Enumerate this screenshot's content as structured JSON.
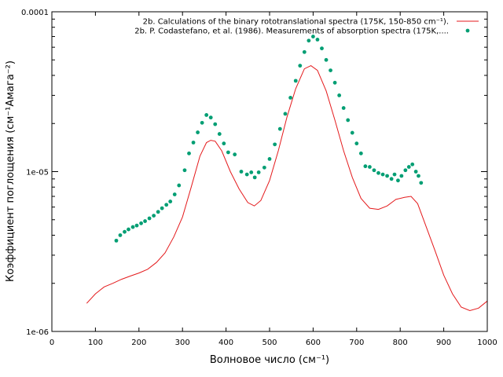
{
  "chart_data": {
    "type": "line",
    "xlabel": "Волновое число (см⁻¹)",
    "ylabel": "Коэффициент поглощения (см⁻¹Амага⁻²)",
    "x_ticks": [
      0,
      100,
      200,
      300,
      400,
      500,
      600,
      700,
      800,
      900,
      1000
    ],
    "y_ticks": [
      {
        "value": 1e-06,
        "label": "1e-06"
      },
      {
        "value": 1e-05,
        "label": "1e-05"
      },
      {
        "value": 0.0001,
        "label": "0.0001"
      }
    ],
    "xlim": [
      0,
      1000
    ],
    "ylim": [
      1e-06,
      0.0001
    ],
    "y_scale": "log",
    "grid": false,
    "legend_position": "top-right",
    "series": [
      {
        "name": "2b. Calculations of the binary rototranslational spectra  (175K, 150-850 cm⁻¹).",
        "style": "line",
        "color": "#e41a1c",
        "points": [
          [
            80,
            1.5e-06
          ],
          [
            100,
            1.72e-06
          ],
          [
            120,
            1.9e-06
          ],
          [
            140,
            2e-06
          ],
          [
            160,
            2.12e-06
          ],
          [
            180,
            2.22e-06
          ],
          [
            200,
            2.32e-06
          ],
          [
            220,
            2.45e-06
          ],
          [
            240,
            2.7e-06
          ],
          [
            260,
            3.1e-06
          ],
          [
            280,
            3.9e-06
          ],
          [
            300,
            5.2e-06
          ],
          [
            320,
            8e-06
          ],
          [
            340,
            1.25e-05
          ],
          [
            355,
            1.52e-05
          ],
          [
            365,
            1.57e-05
          ],
          [
            375,
            1.55e-05
          ],
          [
            390,
            1.35e-05
          ],
          [
            410,
            1e-05
          ],
          [
            430,
            7.8e-06
          ],
          [
            450,
            6.4e-06
          ],
          [
            465,
            6.1e-06
          ],
          [
            480,
            6.6e-06
          ],
          [
            500,
            8.8e-06
          ],
          [
            520,
            1.35e-05
          ],
          [
            540,
            2.2e-05
          ],
          [
            560,
            3.3e-05
          ],
          [
            580,
            4.4e-05
          ],
          [
            595,
            4.6e-05
          ],
          [
            610,
            4.3e-05
          ],
          [
            630,
            3.2e-05
          ],
          [
            650,
            2.1e-05
          ],
          [
            670,
            1.35e-05
          ],
          [
            690,
            9.2e-06
          ],
          [
            710,
            6.8e-06
          ],
          [
            730,
            5.9e-06
          ],
          [
            750,
            5.8e-06
          ],
          [
            770,
            6.1e-06
          ],
          [
            790,
            6.7e-06
          ],
          [
            810,
            6.9e-06
          ],
          [
            825,
            7e-06
          ],
          [
            840,
            6.3e-06
          ],
          [
            860,
            4.5e-06
          ],
          [
            880,
            3.2e-06
          ],
          [
            900,
            2.25e-06
          ],
          [
            920,
            1.72e-06
          ],
          [
            940,
            1.42e-06
          ],
          [
            960,
            1.35e-06
          ],
          [
            980,
            1.4e-06
          ],
          [
            1000,
            1.55e-06
          ]
        ]
      },
      {
        "name": "2b. P. Codastefano, et al. (1986). Measurements of absorption spectra (175K,....",
        "style": "points",
        "color": "#009e73",
        "points": [
          [
            148,
            3.7e-06
          ],
          [
            157,
            4e-06
          ],
          [
            167,
            4.2e-06
          ],
          [
            176,
            4.35e-06
          ],
          [
            186,
            4.5e-06
          ],
          [
            195,
            4.6e-06
          ],
          [
            205,
            4.75e-06
          ],
          [
            214,
            4.9e-06
          ],
          [
            224,
            5.1e-06
          ],
          [
            234,
            5.3e-06
          ],
          [
            244,
            5.6e-06
          ],
          [
            253,
            5.9e-06
          ],
          [
            263,
            6.2e-06
          ],
          [
            272,
            6.5e-06
          ],
          [
            282,
            7.2e-06
          ],
          [
            292,
            8.2e-06
          ],
          [
            305,
            1.02e-05
          ],
          [
            315,
            1.3e-05
          ],
          [
            325,
            1.52e-05
          ],
          [
            335,
            1.76e-05
          ],
          [
            345,
            2.02e-05
          ],
          [
            355,
            2.26e-05
          ],
          [
            365,
            2.18e-05
          ],
          [
            375,
            1.98e-05
          ],
          [
            385,
            1.72e-05
          ],
          [
            395,
            1.5e-05
          ],
          [
            405,
            1.32e-05
          ],
          [
            420,
            1.28e-05
          ],
          [
            435,
            1e-05
          ],
          [
            448,
            9.6e-06
          ],
          [
            458,
            9.9e-06
          ],
          [
            466,
            9.2e-06
          ],
          [
            475,
            9.9e-06
          ],
          [
            488,
            1.06e-05
          ],
          [
            500,
            1.2e-05
          ],
          [
            512,
            1.48e-05
          ],
          [
            524,
            1.85e-05
          ],
          [
            536,
            2.3e-05
          ],
          [
            548,
            2.9e-05
          ],
          [
            560,
            3.7e-05
          ],
          [
            570,
            4.6e-05
          ],
          [
            580,
            5.6e-05
          ],
          [
            590,
            6.6e-05
          ],
          [
            600,
            7e-05
          ],
          [
            610,
            6.7e-05
          ],
          [
            620,
            5.9e-05
          ],
          [
            630,
            5e-05
          ],
          [
            640,
            4.3e-05
          ],
          [
            650,
            3.6e-05
          ],
          [
            660,
            3e-05
          ],
          [
            670,
            2.5e-05
          ],
          [
            680,
            2.1e-05
          ],
          [
            690,
            1.75e-05
          ],
          [
            700,
            1.5e-05
          ],
          [
            710,
            1.3e-05
          ],
          [
            720,
            1.08e-05
          ],
          [
            730,
            1.07e-05
          ],
          [
            740,
            1.02e-05
          ],
          [
            750,
            9.8e-06
          ],
          [
            760,
            9.6e-06
          ],
          [
            770,
            9.4e-06
          ],
          [
            780,
            9e-06
          ],
          [
            787,
            9.6e-06
          ],
          [
            795,
            8.8e-06
          ],
          [
            803,
            9.4e-06
          ],
          [
            812,
            1.02e-05
          ],
          [
            820,
            1.07e-05
          ],
          [
            828,
            1.11e-05
          ],
          [
            836,
            1e-05
          ],
          [
            842,
            9.4e-06
          ],
          [
            848,
            8.5e-06
          ]
        ]
      }
    ]
  }
}
